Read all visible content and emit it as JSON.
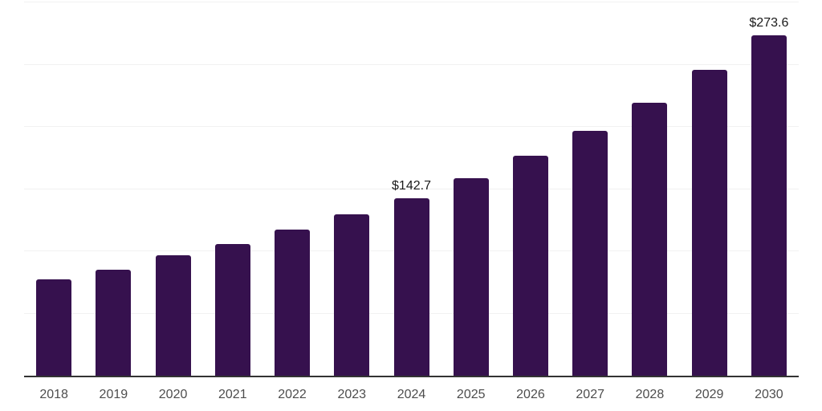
{
  "chart_data": {
    "type": "bar",
    "title": "",
    "xlabel": "",
    "ylabel": "",
    "categories": [
      "2018",
      "2019",
      "2020",
      "2021",
      "2022",
      "2023",
      "2024",
      "2025",
      "2026",
      "2027",
      "2028",
      "2029",
      "2030"
    ],
    "values": [
      77.6,
      84.9,
      96.7,
      106.0,
      117.2,
      129.5,
      142.7,
      158.6,
      176.8,
      196.9,
      219.2,
      246.0,
      273.6
    ],
    "data_labels": [
      "",
      "",
      "",
      "",
      "",
      "",
      "$142.7",
      "",
      "",
      "",
      "",
      "",
      "$273.6"
    ],
    "ylim": [
      0,
      300
    ],
    "grid_step": 50,
    "grid_on": true,
    "legend": "none",
    "bar_color": "#36114E",
    "gridline_color": "#f1f1f1",
    "axis_line_color": "#333333",
    "value_label_color": "#1a1a1a",
    "tick_label_color": "#4d4d4d"
  }
}
